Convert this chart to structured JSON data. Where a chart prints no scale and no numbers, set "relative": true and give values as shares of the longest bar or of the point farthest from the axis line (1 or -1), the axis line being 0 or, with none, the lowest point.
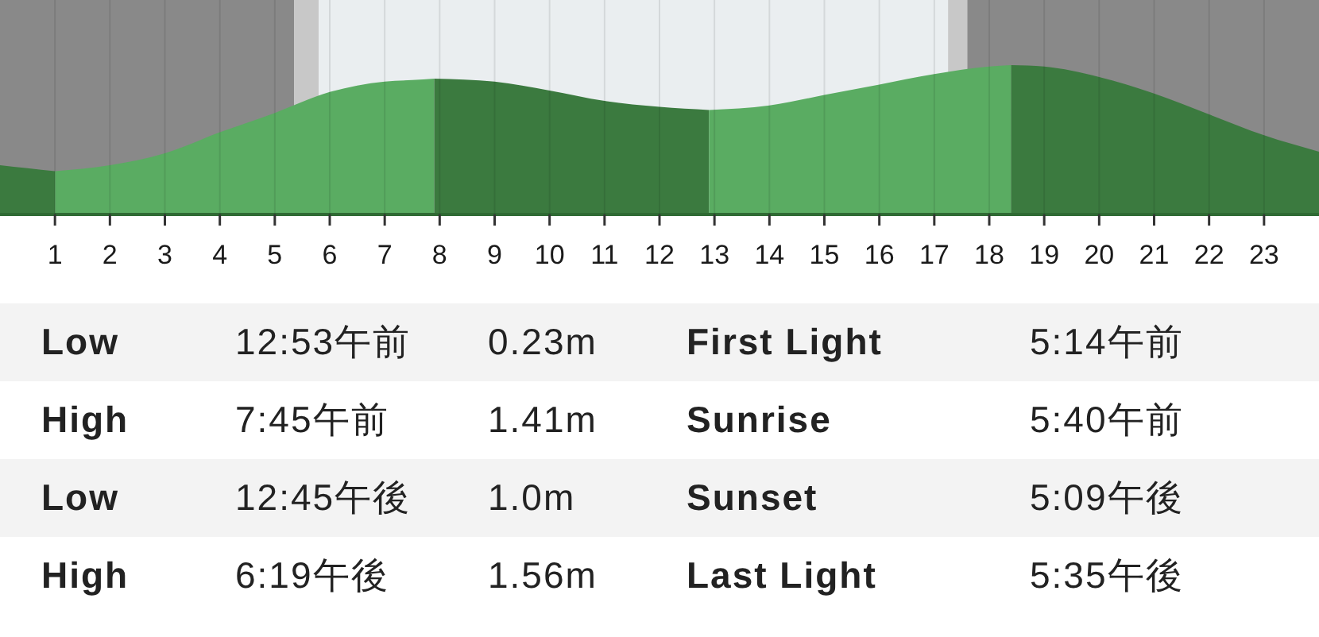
{
  "chart_data": [
    {
      "type": "area",
      "relative": true,
      "xlim": [
        0,
        24
      ],
      "xticks": [
        1,
        2,
        3,
        4,
        5,
        6,
        7,
        8,
        9,
        10,
        11,
        12,
        13,
        14,
        15,
        16,
        17,
        18,
        19,
        20,
        21,
        22,
        23
      ],
      "grid": "x",
      "bands": [
        {
          "axis": "x",
          "from": 0,
          "to": 5.35,
          "color": "#898989"
        },
        {
          "axis": "x",
          "from": 5.35,
          "to": 5.8,
          "color": "#c8c8c8"
        },
        {
          "axis": "x",
          "from": 5.8,
          "to": 17.25,
          "color": "#eaeef0"
        },
        {
          "axis": "x",
          "from": 17.25,
          "to": 17.6,
          "color": "#c8c8c8"
        },
        {
          "axis": "x",
          "from": 17.6,
          "to": 24,
          "color": "#898989"
        }
      ],
      "series": [
        {
          "color": "#3b7a3f",
          "x": [
            0,
            0.5,
            1
          ],
          "values": [
            0.33,
            0.31,
            0.29
          ]
        },
        {
          "color": "#5aac62",
          "x": [
            1,
            2,
            3,
            4,
            5,
            6,
            7,
            7.5,
            7.9
          ],
          "values": [
            0.29,
            0.33,
            0.41,
            0.55,
            0.68,
            0.82,
            0.89,
            0.9,
            0.91
          ]
        },
        {
          "color": "#3b7a3f",
          "x": [
            7.9,
            9,
            10,
            11,
            12,
            12.9
          ],
          "values": [
            0.91,
            0.89,
            0.83,
            0.76,
            0.72,
            0.7
          ]
        },
        {
          "color": "#5aac62",
          "x": [
            12.9,
            14,
            15,
            16,
            17,
            18,
            18.4
          ],
          "values": [
            0.7,
            0.73,
            0.8,
            0.87,
            0.94,
            0.99,
            1
          ]
        },
        {
          "color": "#3b7a3f",
          "x": [
            18.4,
            19,
            20,
            21,
            22,
            23,
            24
          ],
          "values": [
            1,
            0.99,
            0.92,
            0.81,
            0.67,
            0.53,
            0.42
          ]
        }
      ]
    },
    {
      "type": "other",
      "annotations": [
        "Low",
        "12:53午前",
        "0.23m",
        "First Light",
        "5:14午前",
        "High",
        "7:45午前",
        "1.41m",
        "Sunrise",
        "5:40午前",
        "Low",
        "12:45午後",
        "1.0m",
        "Sunset",
        "5:09午後",
        "High",
        "6:19午後",
        "1.56m",
        "Last Light",
        "5:35午後"
      ]
    }
  ]
}
